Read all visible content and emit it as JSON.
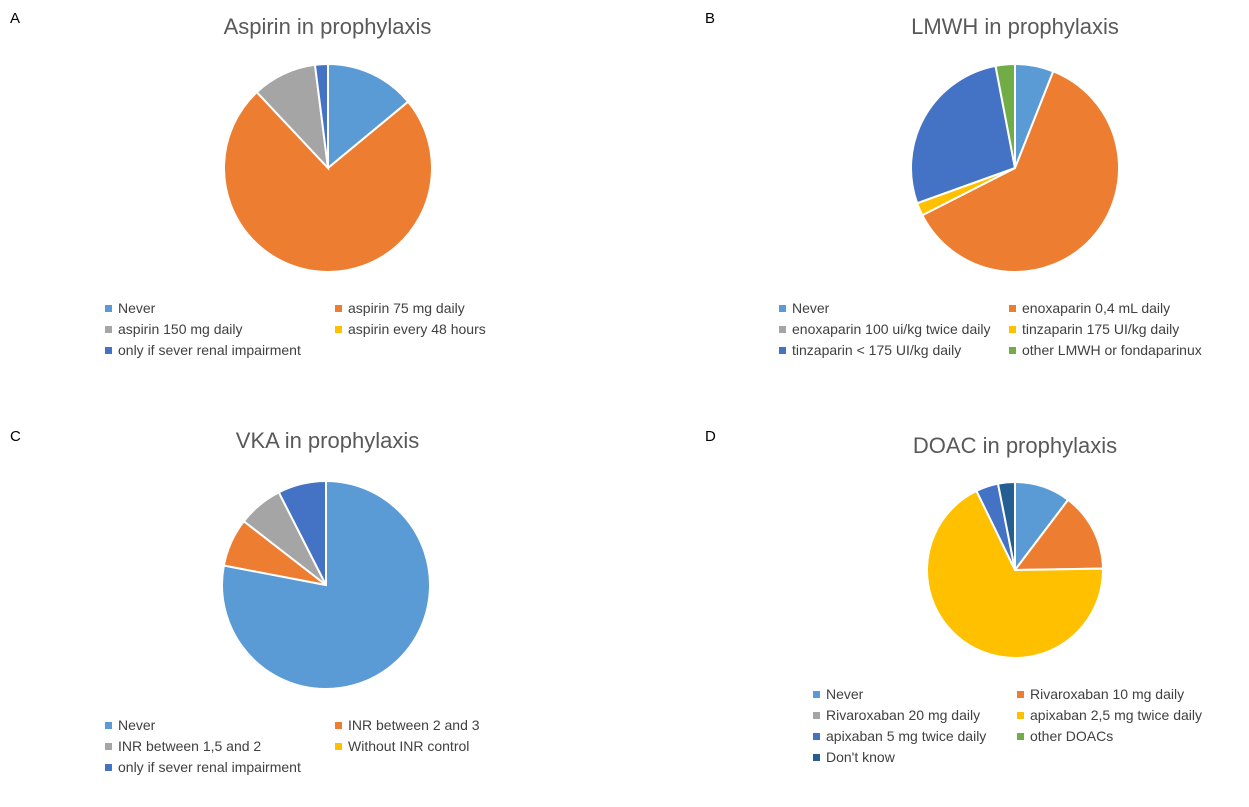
{
  "chart_data": [
    {
      "id": "a",
      "type": "pie",
      "panel_label": "A",
      "title": "Aspirin in prophylaxis",
      "categories": [
        "Never",
        "aspirin 75 mg daily",
        "aspirin 150 mg daily",
        "aspirin every 48 hours",
        "only if sever renal impairment"
      ],
      "values": [
        14,
        74,
        10,
        0,
        2
      ],
      "colors": [
        "#5B9BD5",
        "#ED7D31",
        "#A5A5A5",
        "#FFC000",
        "#4472C4"
      ],
      "legend": "bottom"
    },
    {
      "id": "b",
      "type": "pie",
      "panel_label": "B",
      "title": "LMWH in prophylaxis",
      "categories": [
        "Never",
        "enoxaparin 0,4 mL daily",
        "enoxaparin 100 ui/kg twice daily",
        "tinzaparin 175 UI/kg daily",
        "tinzaparin < 175 UI/kg daily",
        "other LMWH or fondaparinux"
      ],
      "values": [
        6,
        61.5,
        0,
        2,
        27.5,
        3
      ],
      "colors": [
        "#5B9BD5",
        "#ED7D31",
        "#A5A5A5",
        "#FFC000",
        "#4472C4",
        "#70AD47"
      ],
      "legend": "bottom"
    },
    {
      "id": "c",
      "type": "pie",
      "panel_label": "C",
      "title": "VKA in prophylaxis",
      "categories": [
        "Never",
        "INR between 2 and 3",
        "INR between 1,5 and 2",
        "Without INR control",
        "only if sever renal impairment"
      ],
      "values": [
        78,
        7.5,
        7,
        0,
        7.5
      ],
      "colors": [
        "#5B9BD5",
        "#ED7D31",
        "#A5A5A5",
        "#FFC000",
        "#4472C4"
      ],
      "legend": "bottom"
    },
    {
      "id": "d",
      "type": "pie",
      "panel_label": "D",
      "title": "DOAC in prophylaxis",
      "categories": [
        "Never",
        "Rivaroxaban 10 mg daily",
        "Rivaroxaban 20 mg daily",
        "apixaban 2,5 mg twice daily",
        "apixaban 5 mg twice daily",
        "other DOACs",
        "Don't know"
      ],
      "values": [
        10,
        14,
        0,
        66,
        4,
        0,
        3
      ],
      "colors": [
        "#5B9BD5",
        "#ED7D31",
        "#A5A5A5",
        "#FFC000",
        "#4472C4",
        "#70AD47",
        "#255E91"
      ],
      "legend": "bottom"
    }
  ]
}
